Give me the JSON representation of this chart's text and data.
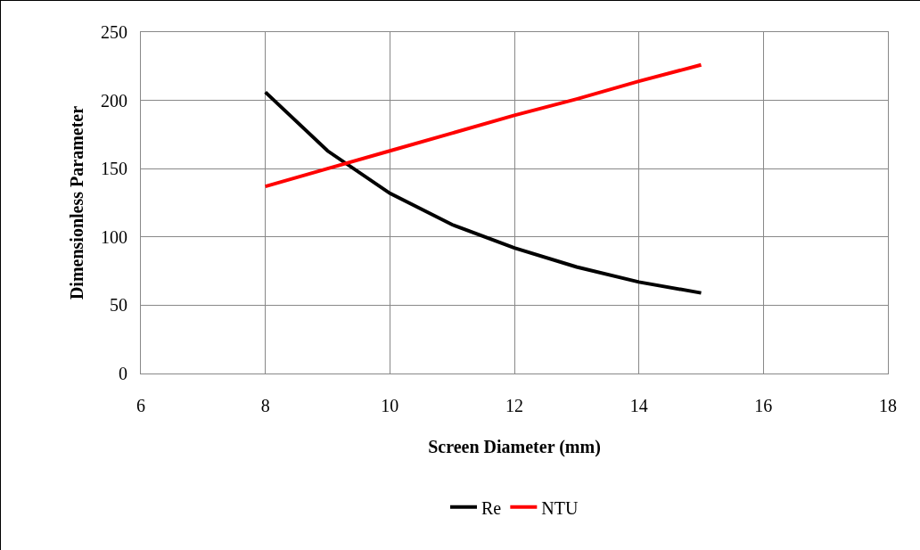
{
  "chart_data": {
    "type": "line",
    "xlabel": "Screen Diameter (mm)",
    "ylabel": "Dimensionless Parameter",
    "x": [
      8,
      9,
      10,
      11,
      12,
      13,
      14,
      15
    ],
    "series": [
      {
        "name": "Re",
        "color": "#000000",
        "values": [
          206,
          163,
          132,
          109,
          92,
          78,
          67,
          59
        ]
      },
      {
        "name": "NTU",
        "color": "#ff0000",
        "values": [
          137,
          150,
          163,
          176,
          189,
          201,
          214,
          226
        ]
      }
    ],
    "xlim": [
      6,
      18
    ],
    "xticks": [
      6,
      8,
      10,
      12,
      14,
      16,
      18
    ],
    "ylim": [
      0,
      250
    ],
    "yticks": [
      0,
      50,
      100,
      150,
      200,
      250
    ],
    "grid": true,
    "legend": "bottom",
    "marker": "none",
    "line_style": "solid"
  }
}
